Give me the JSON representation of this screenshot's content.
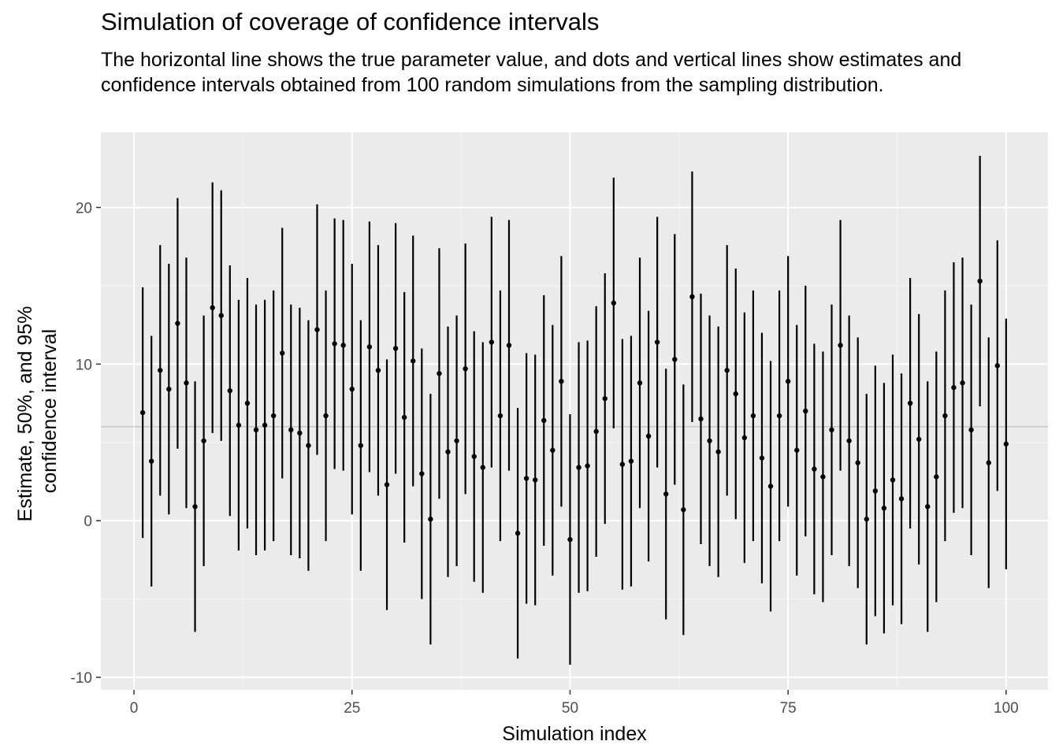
{
  "chart_data": {
    "type": "scatter",
    "title": "Simulation of coverage of confidence intervals",
    "subtitle": "The horizontal line shows the true parameter value, and dots and vertical lines show estimates and confidence intervals obtained from 100 random simulations from the sampling distribution.",
    "xlabel": "Simulation index",
    "ylabel_lines": [
      "Estimate, 50%, and 95%",
      "confidence interval"
    ],
    "xlim": [
      -3.8,
      104.8
    ],
    "ylim": [
      -10.8,
      24.8
    ],
    "x_ticks": [
      0,
      25,
      50,
      75,
      100
    ],
    "x_tick_labels": [
      "0",
      "25",
      "50",
      "75",
      "100"
    ],
    "y_ticks": [
      -10,
      0,
      10,
      20
    ],
    "y_tick_labels": [
      "-10",
      "0",
      "10",
      "20"
    ],
    "true_value": 6,
    "grid": true,
    "series": [
      {
        "x": [
          1,
          2,
          3,
          4,
          5,
          6,
          7,
          8,
          9,
          10,
          11,
          12,
          13,
          14,
          15,
          16,
          17,
          18,
          19,
          20,
          21,
          22,
          23,
          24,
          25,
          26,
          27,
          28,
          29,
          30,
          31,
          32,
          33,
          34,
          35,
          36,
          37,
          38,
          39,
          40,
          41,
          42,
          43,
          44,
          45,
          46,
          47,
          48,
          49,
          50,
          51,
          52,
          53,
          54,
          55,
          56,
          57,
          58,
          59,
          60,
          61,
          62,
          63,
          64,
          65,
          66,
          67,
          68,
          69,
          70,
          71,
          72,
          73,
          74,
          75,
          76,
          77,
          78,
          79,
          80,
          81,
          82,
          83,
          84,
          85,
          86,
          87,
          88,
          89,
          90,
          91,
          92,
          93,
          94,
          95,
          96,
          97,
          98,
          99,
          100
        ],
        "estimate": [
          6.9,
          3.8,
          9.6,
          8.4,
          12.6,
          8.8,
          0.9,
          5.1,
          13.6,
          13.1,
          8.3,
          6.1,
          7.5,
          5.8,
          6.1,
          6.7,
          10.7,
          5.8,
          5.6,
          4.8,
          12.2,
          6.7,
          11.3,
          11.2,
          8.4,
          4.8,
          11.1,
          9.6,
          2.3,
          11.0,
          6.6,
          10.2,
          3.0,
          0.1,
          9.4,
          4.4,
          5.1,
          9.7,
          4.1,
          3.4,
          11.4,
          6.7,
          11.2,
          -0.8,
          2.7,
          2.6,
          6.4,
          4.5,
          8.9,
          -1.2,
          3.4,
          3.5,
          5.7,
          7.8,
          13.9,
          3.6,
          3.8,
          8.8,
          5.4,
          11.4,
          1.7,
          10.3,
          0.7,
          14.3,
          6.5,
          5.1,
          4.4,
          9.6,
          8.1,
          5.3,
          6.7,
          4.0,
          2.2,
          6.7,
          8.9,
          4.5,
          7.0,
          3.3,
          2.8,
          5.8,
          11.2,
          5.1,
          3.7,
          0.1,
          1.9,
          0.8,
          2.6,
          1.4,
          7.5,
          5.2,
          0.9,
          2.8,
          6.7,
          8.5,
          8.8,
          5.8,
          15.3,
          3.7,
          9.9,
          4.9
        ],
        "lower_95": [
          -1.1,
          -4.2,
          1.6,
          0.4,
          4.6,
          0.8,
          -7.1,
          -2.9,
          5.6,
          5.1,
          0.3,
          -1.9,
          -0.5,
          -2.2,
          -1.9,
          -1.3,
          2.7,
          -2.2,
          -2.4,
          -3.2,
          4.2,
          -1.3,
          3.3,
          3.2,
          0.4,
          -3.2,
          3.1,
          1.6,
          -5.7,
          3.0,
          -1.4,
          2.2,
          -5.0,
          -7.9,
          1.4,
          -3.6,
          -2.9,
          1.7,
          -3.9,
          -4.6,
          3.4,
          -1.3,
          3.2,
          -8.8,
          -5.3,
          -5.4,
          -1.6,
          -3.5,
          0.9,
          -9.2,
          -4.6,
          -4.5,
          -2.3,
          -0.2,
          5.9,
          -4.4,
          -4.2,
          0.8,
          -2.6,
          3.4,
          -6.3,
          2.3,
          -7.3,
          6.3,
          -1.5,
          -2.9,
          -3.6,
          1.6,
          0.1,
          -2.7,
          -1.3,
          -4.0,
          -5.8,
          -1.3,
          0.9,
          -3.5,
          -1.0,
          -4.7,
          -5.2,
          -2.2,
          3.2,
          -2.9,
          -4.3,
          -7.9,
          -6.1,
          -7.2,
          -5.4,
          -6.6,
          -0.5,
          -2.8,
          -7.1,
          -5.2,
          -1.3,
          0.5,
          0.8,
          -2.2,
          7.3,
          -4.3,
          1.9,
          -3.1
        ],
        "upper_95": [
          14.9,
          11.8,
          17.6,
          16.4,
          20.6,
          16.8,
          8.9,
          13.1,
          21.6,
          21.1,
          16.3,
          14.1,
          15.5,
          13.8,
          14.1,
          14.7,
          18.7,
          13.8,
          13.6,
          12.8,
          20.2,
          14.7,
          19.3,
          19.2,
          16.4,
          12.8,
          19.1,
          17.6,
          10.3,
          19.0,
          14.6,
          18.2,
          11.0,
          8.1,
          17.4,
          12.4,
          13.1,
          17.7,
          12.1,
          11.4,
          19.4,
          14.7,
          19.2,
          7.2,
          10.7,
          10.6,
          14.4,
          12.5,
          16.9,
          6.8,
          11.4,
          11.5,
          13.7,
          15.8,
          21.9,
          11.6,
          11.8,
          16.8,
          13.4,
          19.4,
          9.7,
          18.3,
          8.7,
          22.3,
          14.5,
          13.1,
          12.4,
          17.6,
          16.1,
          13.3,
          14.7,
          12.0,
          10.2,
          14.7,
          16.9,
          12.5,
          15.0,
          11.3,
          10.8,
          13.8,
          19.2,
          13.1,
          11.7,
          8.1,
          9.9,
          8.8,
          10.6,
          9.4,
          15.5,
          13.2,
          8.9,
          10.8,
          14.7,
          16.5,
          16.8,
          13.8,
          23.3,
          11.7,
          17.9,
          12.9
        ]
      }
    ]
  },
  "colors": {
    "panel_background": "#ebebeb",
    "grid_major": "#ffffff",
    "grid_minor": "#f5f5f5",
    "reference_line": "#b3b3b3",
    "marks": "#000000",
    "tick_text": "#4d4d4d"
  }
}
